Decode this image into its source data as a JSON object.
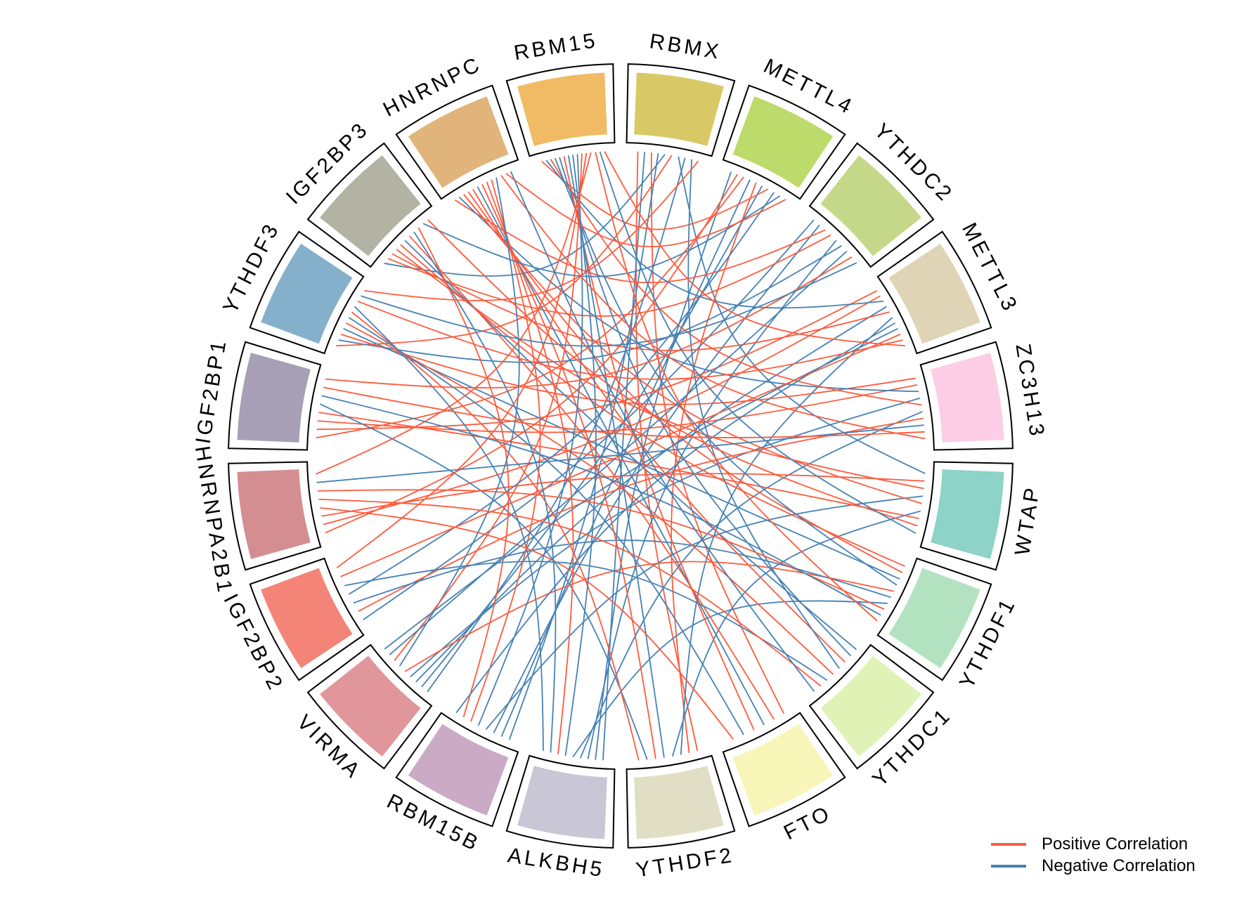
{
  "chart_data": {
    "type": "chord",
    "sectors": [
      {
        "name": "RBMX",
        "color": "#d8c966"
      },
      {
        "name": "METTL4",
        "color": "#bcdb6a"
      },
      {
        "name": "YTHDC2",
        "color": "#c5d889"
      },
      {
        "name": "METTL3",
        "color": "#dfd4b6"
      },
      {
        "name": "ZC3H13",
        "color": "#fccde5"
      },
      {
        "name": "WTAP",
        "color": "#8dd3c7"
      },
      {
        "name": "YTHDF1",
        "color": "#b3e2c0"
      },
      {
        "name": "YTHDC1",
        "color": "#e0f2b6"
      },
      {
        "name": "FTO",
        "color": "#f8f5b9"
      },
      {
        "name": "YTHDF2",
        "color": "#e0dfc6"
      },
      {
        "name": "ALKBH5",
        "color": "#c9c6d6"
      },
      {
        "name": "RBM15B",
        "color": "#cbaac5"
      },
      {
        "name": "VIRMA",
        "color": "#e0969a"
      },
      {
        "name": "IGF2BP2",
        "color": "#f48477"
      },
      {
        "name": "HNRNPA2B1",
        "color": "#d48e91"
      },
      {
        "name": "IGF2BP1",
        "color": "#a69fb5"
      },
      {
        "name": "YTHDF3",
        "color": "#85b0cb"
      },
      {
        "name": "IGF2BP3",
        "color": "#b2b3a2"
      },
      {
        "name": "HNRNPC",
        "color": "#e0b47a"
      },
      {
        "name": "RBM15",
        "color": "#f0bb64"
      }
    ],
    "links": [
      [
        "RBMX",
        "YTHDF2",
        "+"
      ],
      [
        "RBMX",
        "ALKBH5",
        "-"
      ],
      [
        "RBMX",
        "FTO",
        "+"
      ],
      [
        "RBMX",
        "RBM15B",
        "-"
      ],
      [
        "RBMX",
        "IGF2BP3",
        "-"
      ],
      [
        "RBMX",
        "YTHDF3",
        "+"
      ],
      [
        "RBMX",
        "WTAP",
        "-"
      ],
      [
        "RBMX",
        "VIRMA",
        "-"
      ],
      [
        "METTL4",
        "ALKBH5",
        "-"
      ],
      [
        "METTL4",
        "HNRNPA2B1",
        "+"
      ],
      [
        "METTL4",
        "IGF2BP1",
        "+"
      ],
      [
        "METTL4",
        "RBM15B",
        "-"
      ],
      [
        "METTL4",
        "YTHDF2",
        "+"
      ],
      [
        "METTL4",
        "VIRMA",
        "-"
      ],
      [
        "METTL4",
        "RBM15",
        "+"
      ],
      [
        "YTHDC2",
        "IGF2BP2",
        "-"
      ],
      [
        "YTHDC2",
        "RBM15B",
        "-"
      ],
      [
        "YTHDC2",
        "HNRNPC",
        "+"
      ],
      [
        "YTHDC2",
        "IGF2BP3",
        "+"
      ],
      [
        "YTHDC2",
        "ALKBH5",
        "-"
      ],
      [
        "YTHDC2",
        "YTHDF3",
        "-"
      ],
      [
        "METTL3",
        "IGF2BP1",
        "+"
      ],
      [
        "METTL3",
        "HNRNPA2B1",
        "+"
      ],
      [
        "METTL3",
        "RBM15",
        "-"
      ],
      [
        "METTL3",
        "VIRMA",
        "-"
      ],
      [
        "METTL3",
        "IGF2BP3",
        "+"
      ],
      [
        "METTL3",
        "YTHDF2",
        "-"
      ],
      [
        "ZC3H13",
        "YTHDF3",
        "+"
      ],
      [
        "ZC3H13",
        "IGF2BP1",
        "+"
      ],
      [
        "ZC3H13",
        "HNRNPC",
        "-"
      ],
      [
        "ZC3H13",
        "VIRMA",
        "-"
      ],
      [
        "ZC3H13",
        "RBM15",
        "+"
      ],
      [
        "ZC3H13",
        "ALKBH5",
        "-"
      ],
      [
        "ZC3H13",
        "IGF2BP2",
        "+"
      ],
      [
        "WTAP",
        "HNRNPA2B1",
        "+"
      ],
      [
        "WTAP",
        "IGF2BP3",
        "+"
      ],
      [
        "WTAP",
        "RBM15B",
        "-"
      ],
      [
        "WTAP",
        "HNRNPC",
        "+"
      ],
      [
        "WTAP",
        "YTHDF2",
        "-"
      ],
      [
        "WTAP",
        "IGF2BP1",
        "+"
      ],
      [
        "YTHDF1",
        "IGF2BP3",
        "+"
      ],
      [
        "YTHDF1",
        "HNRNPC",
        "+"
      ],
      [
        "YTHDF1",
        "YTHDF3",
        "-"
      ],
      [
        "YTHDF1",
        "RBM15",
        "-"
      ],
      [
        "YTHDF1",
        "VIRMA",
        "+"
      ],
      [
        "YTHDF1",
        "IGF2BP2",
        "-"
      ],
      [
        "YTHDF1",
        "ALKBH5",
        "-"
      ],
      [
        "YTHDC1",
        "IGF2BP3",
        "-"
      ],
      [
        "YTHDC1",
        "RBM15",
        "-"
      ],
      [
        "YTHDC1",
        "HNRNPC",
        "+"
      ],
      [
        "YTHDC1",
        "RBMX",
        "-"
      ],
      [
        "YTHDC1",
        "YTHDF3",
        "+"
      ],
      [
        "FTO",
        "IGF2BP3",
        "+"
      ],
      [
        "FTO",
        "HNRNPC",
        "-"
      ],
      [
        "FTO",
        "RBM15",
        "+"
      ],
      [
        "FTO",
        "YTHDF3",
        "-"
      ],
      [
        "FTO",
        "HNRNPA2B1",
        "+"
      ],
      [
        "YTHDF2",
        "RBM15",
        "-"
      ],
      [
        "YTHDF2",
        "HNRNPC",
        "+"
      ],
      [
        "YTHDF2",
        "IGF2BP1",
        "-"
      ],
      [
        "YTHDF2",
        "YTHDF3",
        "+"
      ],
      [
        "ALKBH5",
        "RBM15",
        "-"
      ],
      [
        "ALKBH5",
        "HNRNPC",
        "+"
      ],
      [
        "ALKBH5",
        "IGF2BP3",
        "-"
      ],
      [
        "ALKBH5",
        "YTHDF3",
        "-"
      ],
      [
        "RBM15B",
        "RBM15",
        "-"
      ],
      [
        "RBM15B",
        "HNRNPC",
        "+"
      ],
      [
        "RBM15B",
        "IGF2BP3",
        "+"
      ],
      [
        "RBM15B",
        "METTL3",
        "-"
      ],
      [
        "VIRMA",
        "HNRNPC",
        "-"
      ],
      [
        "VIRMA",
        "RBM15",
        "+"
      ],
      [
        "VIRMA",
        "YTHDC2",
        "-"
      ],
      [
        "VIRMA",
        "METTL3",
        "-"
      ],
      [
        "IGF2BP2",
        "METTL4",
        "-"
      ],
      [
        "IGF2BP2",
        "YTHDC1",
        "-"
      ],
      [
        "IGF2BP2",
        "METTL3",
        "+"
      ],
      [
        "IGF2BP2",
        "RBM15",
        "+"
      ],
      [
        "HNRNPA2B1",
        "YTHDC1",
        "+"
      ],
      [
        "HNRNPA2B1",
        "YTHDF1",
        "+"
      ],
      [
        "HNRNPA2B1",
        "ZC3H13",
        "-"
      ],
      [
        "HNRNPA2B1",
        "RBM15",
        "+"
      ],
      [
        "IGF2BP1",
        "YTHDF1",
        "-"
      ],
      [
        "IGF2BP1",
        "ZC3H13",
        "+"
      ],
      [
        "IGF2BP1",
        "YTHDC2",
        "+"
      ],
      [
        "YTHDF3",
        "METTL3",
        "+"
      ],
      [
        "YTHDF3",
        "YTHDC2",
        "-"
      ],
      [
        "YTHDF3",
        "RBMX",
        "+"
      ],
      [
        "IGF2BP3",
        "METTL4",
        "-"
      ],
      [
        "IGF2BP3",
        "WTAP",
        "+"
      ],
      [
        "HNRNPC",
        "ZC3H13",
        "+"
      ],
      [
        "HNRNPC",
        "METTL4",
        "+"
      ],
      [
        "HNRNPC",
        "YTHDC1",
        "-"
      ],
      [
        "RBM15",
        "YTHDF1",
        "+"
      ],
      [
        "RBM15",
        "WTAP",
        "-"
      ],
      [
        "RBM15",
        "METTL3",
        "+"
      ]
    ],
    "legend": [
      {
        "label": "Positive Correlation",
        "sign": "+",
        "color": "#ff5a3c"
      },
      {
        "label": "Negative Correlation",
        "sign": "-",
        "color": "#4682b4"
      }
    ],
    "legend_position": "bottom-right"
  }
}
